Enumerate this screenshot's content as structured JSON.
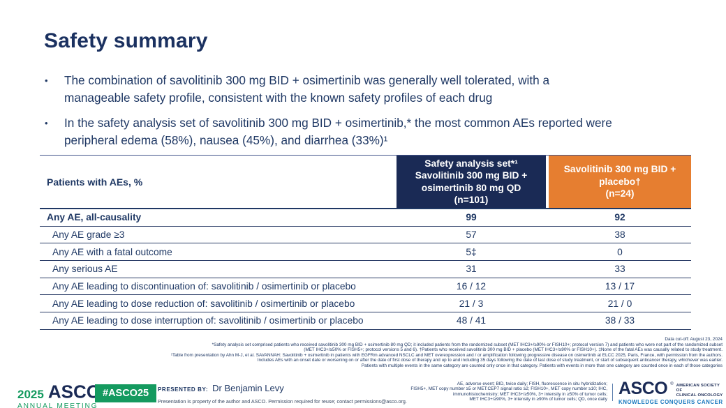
{
  "title": "Safety summary",
  "bullet_char": "•",
  "bullets": [
    "The combination of savolitinib 300 mg BID + osimertinib was generally well tolerated, with a\nmanageable safety profile, consistent with the known safety profiles of each drug",
    "In the safety analysis set of savolitinib 300 mg BID + osimertinib,* the most common AEs reported were\nperipheral edema (58%), nausea (45%), and diarrhea (33%)¹"
  ],
  "table": {
    "row_header": "Patients with AEs, %",
    "col_arm": "Safety analysis set*¹\nSavolitinib 300 mg BID +\nosimertinib 80 mg QD\n(n=101)",
    "col_placebo": "Savolitinib 300 mg BID +\nplacebo†\n(n=24)",
    "rows": [
      {
        "label": "Any AE, all-causality",
        "arm": "99",
        "placebo": "92"
      },
      {
        "label": "Any AE grade ≥3",
        "arm": "57",
        "placebo": "38"
      },
      {
        "label": "Any AE with a fatal outcome",
        "arm": "5‡",
        "placebo": "0"
      },
      {
        "label": "Any serious AE",
        "arm": "31",
        "placebo": "33"
      },
      {
        "label": "Any AE leading to discontinuation of: savolitinib / osimertinib or placebo",
        "arm": "16 / 12",
        "placebo": "13 / 17"
      },
      {
        "label": "Any AE leading to dose reduction of: savolitinib / osimertinib or placebo",
        "arm": "21 / 3",
        "placebo": "21 / 0"
      },
      {
        "label": "Any AE leading to dose interruption of: savolitinib / osimertinib or placebo",
        "arm": "48 / 41",
        "placebo": "38 / 33"
      }
    ]
  },
  "footnotes": [
    "Data cut-off: August 23, 2024",
    "*Safety analysis set comprised patients who received savolitinib 300 mg BID + osimertinib 80 mg QD; it included patients from the randomized subset (MET IHC3+/≥90% or FISH10+; protocol version 7) and patients who were not part of the randomized subset",
    "(MET IHC3+/≥50% or FISH5+; protocol versions 5 and 6). †Patients who received savolitinib 300 mg BID + placebo (MET IHC3+/≥90% or FISH10+). ‡None of the fatal AEs was causally related to study treatment.",
    "¹Table from presentation by Ahn M-J, et al. SAVANNAH: Savolitinib + osimertinib in patients with EGFRm advanced NSCLC and MET overexpression and / or amplification following progressive disease on osimertinib at ELCC 2025, Paris, France, with permission from the authors.",
    "Includes AEs with an onset date or worsening on or after the date of first dose of therapy and up to and including 35 days following the date of last dose of study treatment, or start of subsequent anticancer therapy, whichever was earlier.",
    "Patients with multiple events in the same category are counted only once in that category. Patients with events in more than one category are counted once in each of those categories"
  ],
  "footer": {
    "meeting_year": "2025",
    "meeting_org": "ASCO",
    "reg_mark": "®",
    "meeting_name": "ANNUAL MEETING",
    "hashtag": "#ASCO25",
    "presented_by_label": "PRESENTED BY:",
    "presenter": "Dr Benjamin Levy",
    "permission": "Presentation is property of the author and ASCO. Permission required for reuse; contact permissions@asco.org.",
    "abbreviations": "AE, adverse event; BID, twice daily; FISH, fluorescence in situ hybridization;\nFISH5+, MET copy number ≥5 or MET:CEP7 signal ratio ≥2; FISH10+, MET copy number ≥10; IHC,\nimmunohistochemistry; MET IHC3+/≥50%, 3+ intensity in ≥50% of tumor cells;\nMET IHC3+/≥90%, 3+ intensity in ≥90% of tumor cells; QD, once daily",
    "asco_logo": "ASCO",
    "asco_society": "AMERICAN SOCIETY OF\nCLINICAL ONCOLOGY",
    "asco_tagline": "KNOWLEDGE CONQUERS CANCER"
  },
  "colors": {
    "navy_text": "#1F3864",
    "header_navy_bg": "#1A2A55",
    "header_orange_bg": "#E67E30",
    "green": "#149A5F",
    "tagline_blue": "#1878BE"
  }
}
